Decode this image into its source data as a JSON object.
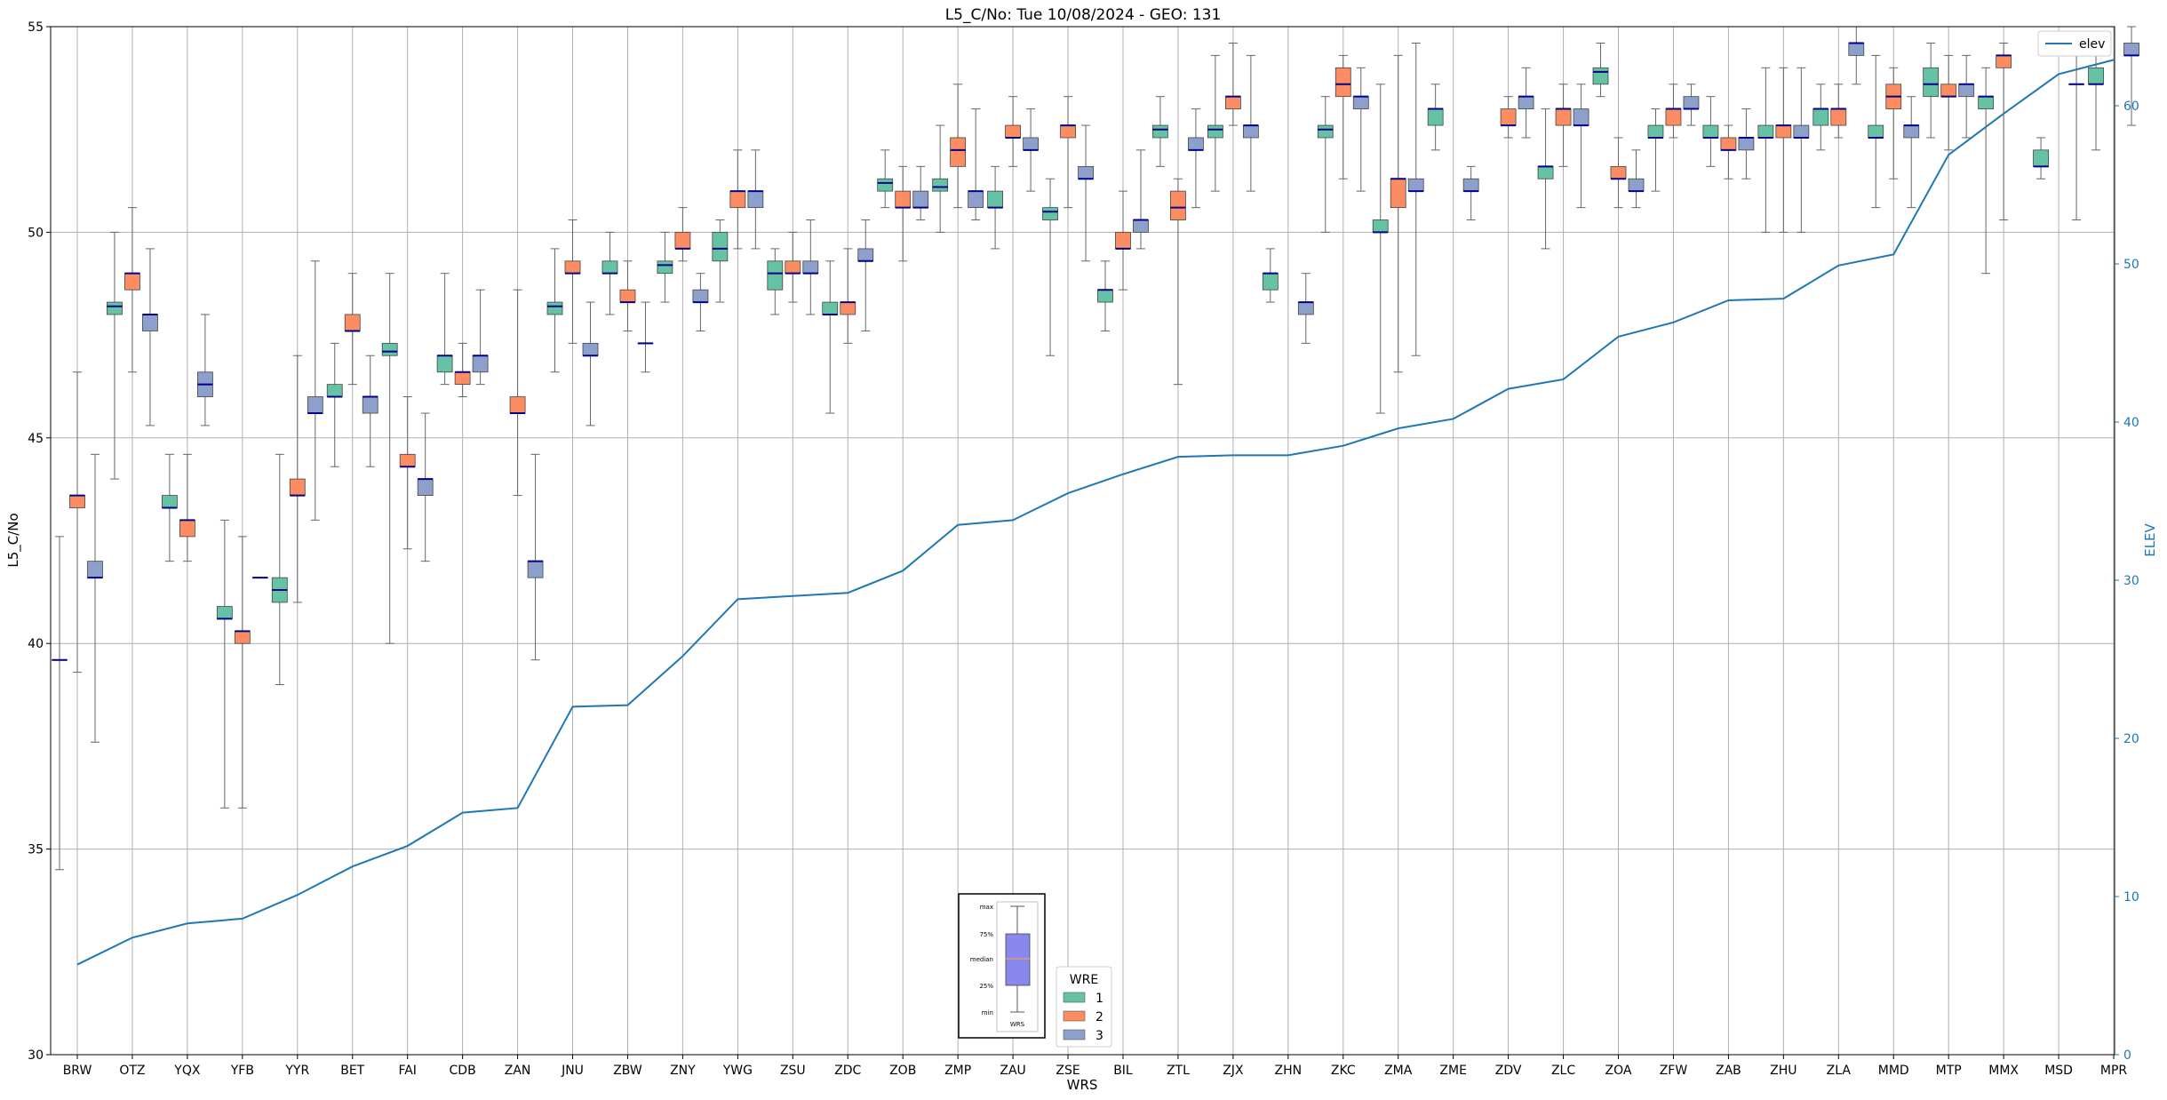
{
  "chart_data": {
    "type": "box",
    "title": "L5_C/No: Tue 10/08/2024 - GEO: 131",
    "xlabel": "WRS",
    "ylabel": "L5_C/No",
    "y2label": "ELEV",
    "ylim": [
      30,
      55
    ],
    "y2lim": [
      0,
      65
    ],
    "yticks": [
      "30",
      "35",
      "40",
      "45",
      "50",
      "55"
    ],
    "y2ticks": [
      "0",
      "10",
      "20",
      "30",
      "40",
      "50",
      "60"
    ],
    "grid": true,
    "categories": [
      "BRW",
      "OTZ",
      "YQX",
      "YFB",
      "YYR",
      "BET",
      "FAI",
      "CDB",
      "ZAN",
      "JNU",
      "ZBW",
      "ZNY",
      "YWG",
      "ZSU",
      "ZDC",
      "ZOB",
      "ZMP",
      "ZAU",
      "ZSE",
      "BIL",
      "ZTL",
      "ZJX",
      "ZHN",
      "ZKC",
      "ZMA",
      "ZME",
      "ZDV",
      "ZLC",
      "ZOA",
      "ZFW",
      "ZAB",
      "ZHU",
      "ZLA",
      "MMD",
      "MTP",
      "MMX",
      "MSD",
      "MPR"
    ],
    "series": [
      {
        "name": "1",
        "color": "#66c2a5",
        "boxes": [
          [
            34.5,
            39.6,
            39.6,
            39.6,
            42.6
          ],
          [
            44,
            48,
            48.2,
            48.3,
            50
          ],
          [
            42,
            43.3,
            43.3,
            43.6,
            44.6
          ],
          [
            36,
            40.6,
            40.6,
            40.9,
            43
          ],
          [
            39,
            41,
            41.3,
            41.6,
            44.6
          ],
          [
            44.3,
            46,
            46,
            46.3,
            47.3
          ],
          [
            40,
            47,
            47.1,
            47.3,
            49
          ],
          [
            46.3,
            46.6,
            47,
            47,
            49
          ],
          [
            null,
            null,
            null,
            null,
            null
          ],
          [
            46.6,
            48,
            48.2,
            48.3,
            49.6
          ],
          [
            48,
            49,
            49,
            49.3,
            50
          ],
          [
            48.3,
            49,
            49.2,
            49.3,
            50
          ],
          [
            48.3,
            49.3,
            49.6,
            50,
            50.3
          ],
          [
            48,
            48.6,
            49,
            49.3,
            49.6
          ],
          [
            45.6,
            48,
            48,
            48.3,
            49.3
          ],
          [
            50.6,
            51,
            51.2,
            51.3,
            52
          ],
          [
            50,
            51,
            51.1,
            51.3,
            52.6
          ],
          [
            49.6,
            50.6,
            50.6,
            51,
            51.6
          ],
          [
            47,
            50.3,
            50.5,
            50.6,
            51.3
          ],
          [
            47.6,
            48.3,
            48.6,
            48.6,
            49.3
          ],
          [
            51.6,
            52.3,
            52.5,
            52.6,
            53.3
          ],
          [
            51,
            52.3,
            52.5,
            52.6,
            54.3
          ],
          [
            48.3,
            48.6,
            49,
            49,
            49.6
          ],
          [
            50,
            52.3,
            52.5,
            52.6,
            53.3
          ],
          [
            45.6,
            50,
            50,
            50.3,
            53.6
          ],
          [
            52,
            52.6,
            53,
            53,
            53.6
          ],
          [
            null,
            null,
            null,
            null,
            null
          ],
          [
            49.6,
            51.3,
            51.6,
            51.6,
            53
          ],
          [
            53.3,
            53.6,
            53.9,
            54,
            54.6
          ],
          [
            51,
            52.3,
            52.3,
            52.6,
            53
          ],
          [
            51.6,
            52.3,
            52.3,
            52.6,
            53.3
          ],
          [
            50,
            52.3,
            52.3,
            52.6,
            54
          ],
          [
            52,
            52.6,
            53,
            53,
            53.6
          ],
          [
            50.6,
            52.3,
            52.3,
            52.6,
            54.3
          ],
          [
            52.3,
            53.3,
            53.6,
            54,
            54.6
          ],
          [
            49,
            53,
            53.3,
            53.3,
            54
          ],
          [
            51.3,
            51.6,
            51.6,
            52,
            52.3
          ],
          [
            52,
            53.6,
            53.6,
            54,
            54.3
          ]
        ]
      },
      {
        "name": "2",
        "color": "#fc8d62",
        "boxes": [
          [
            39.3,
            43.3,
            43.6,
            43.6,
            46.6
          ],
          [
            46.6,
            48.6,
            49,
            49,
            50.6
          ],
          [
            42,
            42.6,
            43,
            43,
            44.6
          ],
          [
            36,
            40,
            40.3,
            40.3,
            42.6
          ],
          [
            41,
            43.6,
            43.6,
            44,
            47
          ],
          [
            46.3,
            47.6,
            47.6,
            48,
            49
          ],
          [
            42.3,
            44.3,
            44.3,
            44.6,
            46
          ],
          [
            46,
            46.3,
            46.6,
            46.6,
            47.3
          ],
          [
            43.6,
            45.6,
            45.6,
            46,
            48.6
          ],
          [
            47.3,
            49,
            49,
            49.3,
            50.3
          ],
          [
            47.6,
            48.3,
            48.3,
            48.6,
            49.3
          ],
          [
            49.3,
            49.6,
            49.6,
            50,
            50.6
          ],
          [
            49.6,
            50.6,
            51,
            51,
            52
          ],
          [
            48.3,
            49,
            49,
            49.3,
            50
          ],
          [
            47.3,
            48,
            48.3,
            48.3,
            49.6
          ],
          [
            49.3,
            50.6,
            50.6,
            51,
            51.6
          ],
          [
            50.6,
            51.6,
            52,
            52.3,
            53.6
          ],
          [
            51.6,
            52.3,
            52.3,
            52.6,
            53.3
          ],
          [
            50.6,
            52.3,
            52.6,
            52.6,
            53.3
          ],
          [
            48.6,
            49.6,
            49.6,
            50,
            51
          ],
          [
            46.3,
            50.3,
            50.6,
            51,
            51.3
          ],
          [
            52.6,
            53,
            53.3,
            53.3,
            54.6
          ],
          [
            null,
            null,
            null,
            null,
            null
          ],
          [
            51.3,
            53.3,
            53.6,
            54,
            54.3
          ],
          [
            46.6,
            50.6,
            51.3,
            51.3,
            54.3
          ],
          [
            null,
            null,
            null,
            null,
            null
          ],
          [
            52.3,
            52.6,
            52.6,
            53,
            53.3
          ],
          [
            51.6,
            52.6,
            53,
            53,
            53.6
          ],
          [
            50.6,
            51.3,
            51.3,
            51.6,
            52.3
          ],
          [
            52.3,
            52.6,
            53,
            53,
            53.6
          ],
          [
            51.3,
            52,
            52,
            52.3,
            52.6
          ],
          [
            50,
            52.3,
            52.6,
            52.6,
            54
          ],
          [
            52.3,
            52.6,
            53,
            53,
            53.6
          ],
          [
            51.3,
            53,
            53.3,
            53.6,
            54
          ],
          [
            52,
            53.3,
            53.3,
            53.6,
            54.3
          ],
          [
            50.3,
            54,
            54.3,
            54.3,
            54.6
          ],
          [
            null,
            null,
            null,
            null,
            null
          ],
          [
            null,
            null,
            null,
            null,
            null
          ]
        ]
      },
      {
        "name": "3",
        "color": "#8da0cb",
        "boxes": [
          [
            37.6,
            41.6,
            41.6,
            42,
            44.6
          ],
          [
            45.3,
            47.6,
            48,
            48,
            49.6
          ],
          [
            45.3,
            46,
            46.3,
            46.6,
            48
          ],
          [
            null,
            41.6,
            41.6,
            41.6,
            null
          ],
          [
            43,
            45.6,
            45.6,
            46,
            49.3
          ],
          [
            44.3,
            45.6,
            46,
            46,
            47
          ],
          [
            42,
            43.6,
            44,
            44,
            45.6
          ],
          [
            46.3,
            46.6,
            47,
            47,
            48.6
          ],
          [
            39.6,
            41.6,
            42,
            42,
            44.6
          ],
          [
            45.3,
            47,
            47,
            47.3,
            48.3
          ],
          [
            46.6,
            47.3,
            47.3,
            47.3,
            48.3
          ],
          [
            47.6,
            48.3,
            48.3,
            48.6,
            49
          ],
          [
            49.6,
            50.6,
            51,
            51,
            52
          ],
          [
            48,
            49,
            49,
            49.3,
            50.3
          ],
          [
            47.6,
            49.3,
            49.3,
            49.6,
            50.3
          ],
          [
            50.3,
            50.6,
            50.6,
            51,
            51.6
          ],
          [
            50.3,
            50.6,
            51,
            51,
            53
          ],
          [
            51,
            52,
            52,
            52.3,
            53
          ],
          [
            49.3,
            51.3,
            51.3,
            51.6,
            52.6
          ],
          [
            49.6,
            50,
            50.3,
            50.3,
            52
          ],
          [
            50.6,
            52,
            52,
            52.3,
            53
          ],
          [
            51,
            52.3,
            52.6,
            52.6,
            54.3
          ],
          [
            47.3,
            48,
            48.3,
            48.3,
            49
          ],
          [
            51,
            53,
            53.3,
            53.3,
            54
          ],
          [
            47,
            51,
            51,
            51.3,
            54.6
          ],
          [
            50.3,
            51,
            51,
            51.3,
            51.6
          ],
          [
            52.3,
            53,
            53.3,
            53.3,
            54
          ],
          [
            50.6,
            52.6,
            52.6,
            53,
            53.6
          ],
          [
            50.6,
            51,
            51,
            51.3,
            52
          ],
          [
            52.6,
            53,
            53,
            53.3,
            53.6
          ],
          [
            51.3,
            52,
            52.3,
            52.3,
            53
          ],
          [
            50,
            52.3,
            52.3,
            52.6,
            54
          ],
          [
            53.6,
            54.3,
            54.6,
            54.6,
            55
          ],
          [
            50.6,
            52.3,
            52.6,
            52.6,
            53.3
          ],
          [
            52.3,
            53.3,
            53.6,
            53.6,
            54.3
          ],
          [
            null,
            null,
            null,
            null,
            null
          ],
          [
            50.3,
            53.6,
            53.6,
            53.6,
            54.3
          ],
          [
            52.6,
            54.3,
            54.3,
            54.6,
            55
          ]
        ]
      }
    ],
    "elev_series": {
      "name": "elev",
      "color": "#1f77b4",
      "values": [
        5.7,
        7.4,
        8.3,
        8.6,
        10.1,
        11.9,
        13.2,
        15.3,
        15.6,
        22.0,
        22.1,
        25.2,
        28.8,
        29.0,
        29.2,
        30.6,
        33.5,
        33.8,
        35.5,
        36.7,
        37.8,
        37.9,
        37.9,
        38.5,
        39.6,
        40.2,
        42.1,
        42.7,
        45.4,
        46.3,
        47.7,
        47.8,
        49.9,
        50.6,
        56.9,
        59.5,
        62.0,
        62.9
      ]
    },
    "legend_title": "WRE",
    "boxplot_key": {
      "labels": [
        "max",
        "75%",
        "median",
        "25%",
        "min"
      ],
      "caption": "WRS"
    }
  }
}
